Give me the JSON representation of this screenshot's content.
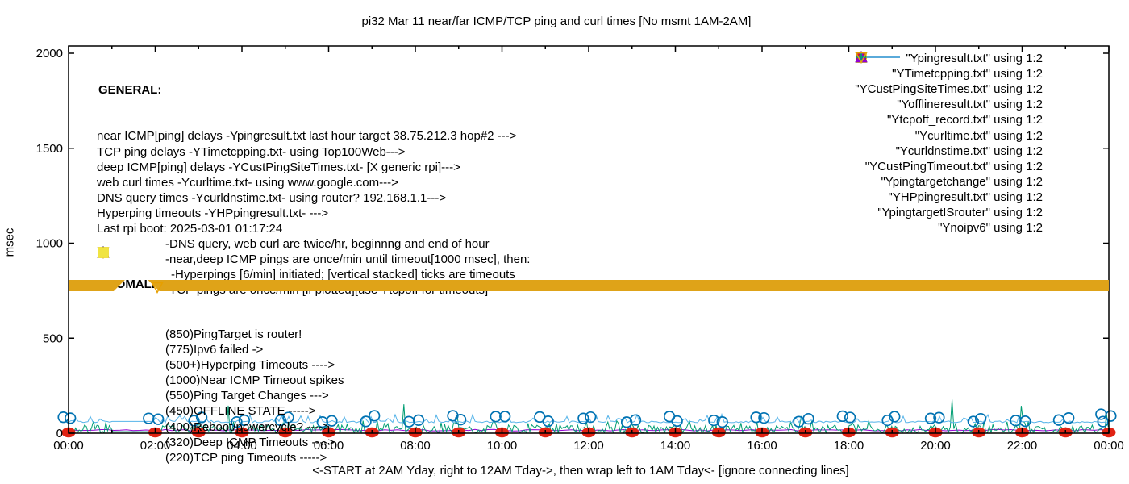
{
  "title": "pi32 Mar 11  near/far ICMP/TCP ping and curl times [No msmt 1AM-2AM]",
  "axes": {
    "ylabel": "msec",
    "ytick_labels": [
      "0",
      "500",
      "1000",
      "1500",
      "2000"
    ],
    "xtick_labels": [
      "00:00",
      "02:00",
      "04:00",
      "06:00",
      "08:00",
      "10:00",
      "12:00",
      "14:00",
      "16:00",
      "18:00",
      "20:00",
      "22:00",
      "00:00"
    ],
    "caption": "<-START at 2AM Yday, right to 12AM Tday->, then wrap left to 1AM Tday<- [ignore connecting lines]"
  },
  "general": {
    "header": "GENERAL:",
    "lines": [
      {
        "indent": 0,
        "text": "near ICMP[ping] delays -Ypingresult.txt last hour target 38.75.212.3 hop#2 --->"
      },
      {
        "indent": 0,
        "text": "TCP ping delays -YTimetcpping.txt- using Top100Web--->"
      },
      {
        "indent": 0,
        "text": "deep ICMP[ping] delays -YCustPingSiteTimes.txt- [X generic rpi]--->"
      },
      {
        "indent": 0,
        "text": "web curl times -Ycurltime.txt- using www.google.com--->"
      },
      {
        "indent": 0,
        "text": "DNS query times -Ycurldnstime.txt- using router? 192.168.1.1--->"
      },
      {
        "indent": 0,
        "text": "Hyperping timeouts -YHPpingresult.txt- --->"
      },
      {
        "indent": 0,
        "text": "Last rpi boot: 2025-03-01 01:17:24"
      },
      {
        "indent": 85,
        "text": "-DNS query, web curl are twice/hr, beginnng and end of hour"
      },
      {
        "indent": 85,
        "text": "-near,deep ICMP pings are once/min until timeout[1000 msec], then:"
      },
      {
        "indent": 92,
        "text": "-Hyperpings [6/min] initiated; [vertical stacked] ticks are timeouts"
      },
      {
        "indent": 85,
        "text": "-TCP pings are once/min [if plotted][use Ytcpoff for timeouts]"
      }
    ]
  },
  "anomalies": {
    "header": "ANOMALIES:",
    "items": [
      {
        "marker": "tri-down-open",
        "color": "#56b4e9",
        "text": "(850)PingTarget is router!"
      },
      {
        "marker": "tri-down-open",
        "color": "#e69f00",
        "text": "(775)Ipv6 failed ->"
      },
      {
        "marker": "plus",
        "color": "#009e73",
        "text": "(500+)Hyperping Timeouts ---->"
      },
      {
        "marker": null,
        "color": null,
        "text": "(1000)Near ICMP Timeout spikes"
      },
      {
        "marker": "tri-up-filled",
        "color": "#9400d3",
        "text": "(550)Ping Target Changes --->"
      },
      {
        "marker": "square-open",
        "color": "#e69f00",
        "text": "(450)OFFLINE STATE ----->"
      },
      {
        "marker": null,
        "color": null,
        "text": "(400)Reboot/powercycle? ---->"
      },
      {
        "marker": "tri-up-open",
        "color": "#000000",
        "text": "(320)Deep ICMP Timeouts ---->"
      },
      {
        "marker": "square-filled",
        "color": "#f0e442",
        "text": "(220)TCP ping Timeouts ----->"
      }
    ]
  },
  "legend": {
    "entries": [
      {
        "label": "\"Ypingresult.txt\" using 1:2",
        "marker": "line",
        "color": "#9400d3"
      },
      {
        "label": "\"YTimetcpping.txt\" using 1:2",
        "marker": "line",
        "color": "#009e73"
      },
      {
        "label": "\"YCustPingSiteTimes.txt\" using 1:2",
        "marker": "line",
        "color": "#56b4e9"
      },
      {
        "label": "\"Yofflineresult.txt\" using 1:2",
        "marker": "square-open",
        "color": "#e69f00"
      },
      {
        "label": "\"Ytcpoff_record.txt\" using 1:2",
        "marker": "square-filled",
        "color": "#f0e442"
      },
      {
        "label": "\"Ycurltime.txt\" using 1:2",
        "marker": "circle-open",
        "color": "#0072b2"
      },
      {
        "label": "\"Ycurldnstime.txt\" using 1:2",
        "marker": "circle-filled",
        "color": "#e02313"
      },
      {
        "label": "\"YCustPingTimeout.txt\" using 1:2",
        "marker": "tri-up-open",
        "color": "#000000"
      },
      {
        "label": "\"Ypingtargetchange\" using 1:2",
        "marker": "tri-up-filled",
        "color": "#9400d3"
      },
      {
        "label": "\"YHPpingresult.txt\" using 1:2",
        "marker": "plus",
        "color": "#009e73"
      },
      {
        "label": "\"YpingtargetISrouter\" using 1:2",
        "marker": "tri-down-open",
        "color": "#56b4e9"
      },
      {
        "label": "\"Ynoipv6\" using 1:2",
        "marker": "tri-down-open",
        "color": "#e69f00"
      }
    ]
  },
  "chart_data": {
    "type": "line",
    "title": "pi32 Mar 11  near/far ICMP/TCP ping and curl times [No msmt 1AM-2AM]",
    "xlabel": "<-START at 2AM Yday, right to 12AM Tday->, then wrap left to 1AM Tday<- [ignore connecting lines]",
    "ylabel": "msec",
    "ylim": [
      0,
      2000
    ],
    "x_hours": [
      0,
      24
    ],
    "ytick_values": [
      0,
      500,
      1000,
      1500,
      2000
    ],
    "xtick_hours": [
      0,
      2,
      4,
      6,
      8,
      10,
      12,
      14,
      16,
      18,
      20,
      22,
      24
    ],
    "grid": false,
    "legend_position": "top-right",
    "no_measurement_gap_hours": [
      1.0,
      1.95
    ],
    "series": [
      {
        "name": "Ypingresult.txt",
        "desc": "near ICMP ping delay",
        "style": "line",
        "color": "#9400d3",
        "level_msec": 16,
        "noise_msec": 4
      },
      {
        "name": "YTimetcpping.txt",
        "desc": "TCP ping delay (dense grass)",
        "style": "line",
        "color": "#009e73",
        "noise_range_msec": [
          2,
          65
        ],
        "spikes_hour_msec": [
          [
            3.68,
            145
          ],
          [
            7.72,
            152
          ],
          [
            8.95,
            95
          ],
          [
            16.9,
            90
          ],
          [
            20.37,
            178
          ],
          [
            21.99,
            144
          ],
          [
            23.94,
            105
          ]
        ]
      },
      {
        "name": "YCustPingSiteTimes.txt",
        "desc": "deep ICMP ping delay",
        "style": "line",
        "color": "#56b4e9",
        "baseline_msec": 62,
        "caret_max_msec": 100
      },
      {
        "name": "Yofflineresult.txt",
        "desc": "offline state markers",
        "style": "square-open",
        "color": "#e69f00",
        "points": []
      },
      {
        "name": "Ytcpoff_record.txt",
        "desc": "TCP ping timeout markers",
        "style": "square-filled",
        "color": "#f0e442",
        "points": []
      },
      {
        "name": "Ycurltime.txt",
        "desc": "web curl times, twice per hour (pair at each hour mark)",
        "style": "circle-open",
        "color": "#0072b2",
        "level_range_msec": [
          58,
          92
        ],
        "extra_points_hour_msec": [
          [
            23.82,
            100
          ]
        ]
      },
      {
        "name": "Ycurldnstime.txt",
        "desc": "DNS query times, hourly dot on baseline",
        "style": "circle-filled",
        "color": "#e02313",
        "level_msec": 0
      },
      {
        "name": "YCustPingTimeout.txt",
        "desc": "deep ICMP timeouts",
        "style": "tri-up-open",
        "color": "#000000",
        "points": []
      },
      {
        "name": "Ypingtargetchange",
        "desc": "ping target changes",
        "style": "tri-up-filled",
        "color": "#9400d3",
        "points": []
      },
      {
        "name": "YHPpingresult.txt",
        "desc": "hyperping timeouts",
        "style": "plus",
        "color": "#009e73",
        "points": []
      },
      {
        "name": "YpingtargetISrouter",
        "desc": "ping target is router markers",
        "style": "tri-down-open",
        "color": "#56b4e9",
        "points": []
      },
      {
        "name": "Ynoipv6",
        "desc": "no-IPv6 state band of stacked down-triangles",
        "style": "band",
        "color": "#dfa318",
        "band_msec": 775,
        "band_segments_hours": [
          [
            0,
            1.3
          ],
          [
            1.83,
            24
          ]
        ]
      }
    ]
  }
}
